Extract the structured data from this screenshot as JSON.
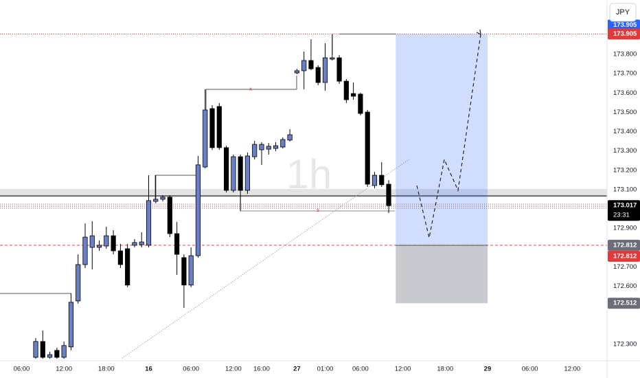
{
  "chart_data": {
    "type": "candlestick",
    "interval": "1h",
    "currency": "JPY",
    "countdown": "23:31",
    "up_color": "#6a7fc4",
    "down_color": "#000000",
    "grid": false,
    "x": [
      0,
      1,
      2,
      3,
      4,
      5,
      6,
      7,
      8,
      9,
      10,
      11,
      12,
      13,
      14,
      15,
      16,
      17,
      18,
      19,
      20,
      21,
      22,
      23,
      24,
      25,
      26,
      27,
      28,
      29,
      30,
      31,
      32,
      33,
      34,
      35,
      36,
      37,
      38,
      39,
      40,
      41,
      42,
      43,
      44,
      45,
      46,
      47,
      48,
      49,
      50
    ],
    "open": [
      172.232,
      172.314,
      172.232,
      172.268,
      172.232,
      172.286,
      172.524,
      172.712,
      172.801,
      172.801,
      172.808,
      172.861,
      172.783,
      172.794,
      172.812,
      172.815,
      172.812,
      173.039,
      173.05,
      173.061,
      172.872,
      172.748,
      172.606,
      172.758,
      173.217,
      173.519,
      173.53,
      173.317,
      173.096,
      173.27,
      173.096,
      173.27,
      173.306,
      173.309,
      173.313,
      173.32,
      173.356,
      173.704,
      173.715,
      173.768,
      173.732,
      173.654,
      173.775,
      173.782,
      173.661,
      173.597,
      173.594,
      173.501,
      173.121,
      173.174,
      173.128
    ],
    "high": [
      172.332,
      172.371,
      172.261,
      172.282,
      172.314,
      172.563,
      172.765,
      172.925,
      172.936,
      172.837,
      172.908,
      172.89,
      172.819,
      172.819,
      172.844,
      172.879,
      173.174,
      173.174,
      173.071,
      173.071,
      172.933,
      172.765,
      172.801,
      173.274,
      173.619,
      173.537,
      173.548,
      173.327,
      173.281,
      173.281,
      173.292,
      173.352,
      173.345,
      173.341,
      173.345,
      173.37,
      173.412,
      173.725,
      173.814,
      173.878,
      173.743,
      173.857,
      173.903,
      173.796,
      173.672,
      173.654,
      173.601,
      173.512,
      173.192,
      173.242,
      173.149
    ],
    "low": [
      172.225,
      172.225,
      172.225,
      172.225,
      172.225,
      172.268,
      172.51,
      172.694,
      172.687,
      172.783,
      172.794,
      172.765,
      172.694,
      172.595,
      172.801,
      172.801,
      172.801,
      173.029,
      173.039,
      172.854,
      172.659,
      172.488,
      172.595,
      172.748,
      173.21,
      173.306,
      173.306,
      173.085,
      173.085,
      172.989,
      173.078,
      173.256,
      173.228,
      173.281,
      173.299,
      173.313,
      173.349,
      173.697,
      173.619,
      173.718,
      173.64,
      173.612,
      173.768,
      173.647,
      173.548,
      173.565,
      173.484,
      173.114,
      173.107,
      173.114,
      172.979
    ],
    "close": [
      172.314,
      172.232,
      172.246,
      172.232,
      172.293,
      172.517,
      172.712,
      172.854,
      172.861,
      172.812,
      172.861,
      172.783,
      172.712,
      172.606,
      172.826,
      172.829,
      173.043,
      173.05,
      173.061,
      172.872,
      172.765,
      172.606,
      172.758,
      173.228,
      173.512,
      173.317,
      173.317,
      173.096,
      173.27,
      173.096,
      173.274,
      173.334,
      173.334,
      173.324,
      173.327,
      173.359,
      173.384,
      173.715,
      173.768,
      173.725,
      173.654,
      173.782,
      173.782,
      173.661,
      173.565,
      173.583,
      173.494,
      173.128,
      173.174,
      173.125,
      173.017
    ],
    "close_label": "173.017",
    "position": {
      "x_start": 51,
      "x_end": 64,
      "target": 173.905,
      "entry": 172.812,
      "stop": 172.512,
      "target_label": "173.905",
      "entry_label": "172.812",
      "stop_label": "172.512"
    },
    "xlim": [
      -5.06,
      80.93
    ],
    "ylim": [
      172.214,
      174.081
    ],
    "xticks": [
      {
        "value": -2,
        "label": "06:00"
      },
      {
        "value": 4,
        "label": "12:00"
      },
      {
        "value": 10,
        "label": "18:00"
      },
      16,
      {
        "value": 22,
        "label": "06:00"
      },
      {
        "value": 28,
        "label": "12:00"
      },
      {
        "value": 32,
        "label": "16:00"
      },
      {
        "value": 37,
        "label": "27"
      },
      {
        "value": 41,
        "label": "01:00"
      },
      {
        "value": 46,
        "label": "06:00"
      },
      {
        "value": 52,
        "label": "12:00"
      },
      {
        "value": 58,
        "label": "18:00"
      },
      {
        "value": 64,
        "label": "29"
      },
      {
        "value": 70,
        "label": "06:00"
      },
      {
        "value": 76,
        "label": "12:00"
      }
    ],
    "yticks": [
      {
        "value": 172.3,
        "label": "172.300"
      },
      {
        "value": 172.6,
        "label": "172.600"
      },
      {
        "value": 172.7,
        "label": "172.700"
      },
      {
        "value": 172.9,
        "label": "172.900"
      },
      {
        "value": 173.1,
        "label": "173.100"
      },
      {
        "value": 173.2,
        "label": "173.200"
      },
      {
        "value": 173.3,
        "label": "173.300"
      },
      {
        "value": 173.4,
        "label": "173.400"
      },
      {
        "value": 173.5,
        "label": "173.500"
      },
      {
        "value": 173.6,
        "label": "173.600"
      },
      {
        "value": 173.7,
        "label": "173.700"
      },
      {
        "value": 173.8,
        "label": "173.800"
      }
    ]
  }
}
